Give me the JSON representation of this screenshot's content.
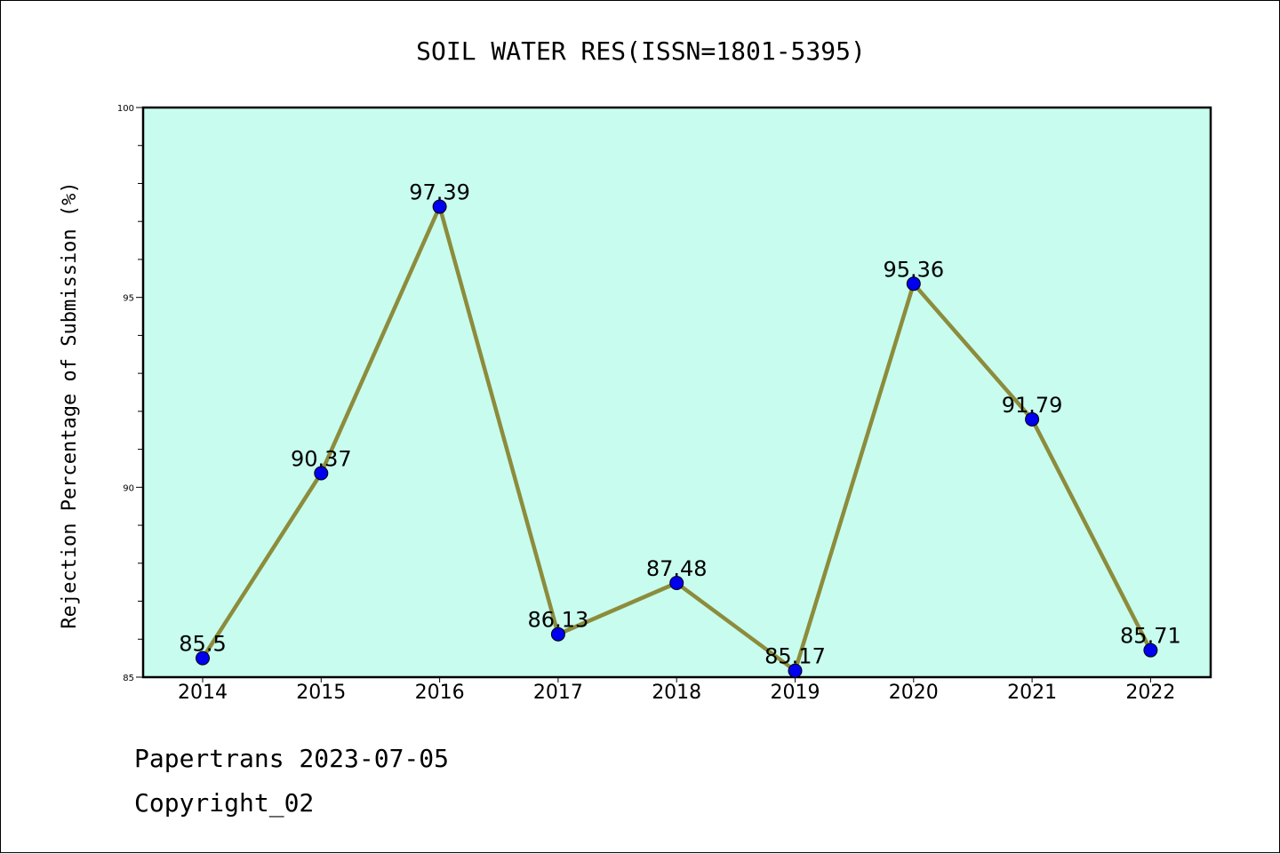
{
  "chart_data": {
    "type": "line",
    "title": "SOIL WATER RES(ISSN=1801-5395)",
    "xlabel": "",
    "ylabel": "Rejection Percentage of Submission (%)",
    "categories": [
      "2014",
      "2015",
      "2016",
      "2017",
      "2018",
      "2019",
      "2020",
      "2021",
      "2022"
    ],
    "series": [
      {
        "values": [
          85.5,
          90.37,
          97.39,
          86.13,
          87.48,
          85.17,
          95.36,
          91.79,
          85.71
        ]
      }
    ],
    "data_labels": [
      "85.5",
      "90.37",
      "97.39",
      "86.13",
      "87.48",
      "85.17",
      "95.36",
      "91.79",
      "85.71"
    ],
    "ylim": [
      85,
      100
    ],
    "y_ticks": [
      "85",
      "90",
      "95",
      "100"
    ],
    "y_minor_step": 1,
    "grid": false,
    "legend": "none",
    "colors": {
      "plot_background": "#c8fcee",
      "line": "#8c8c3c",
      "marker": "#0000ee",
      "axis": "#000000"
    }
  },
  "footer": {
    "date_line": "Papertrans 2023-07-05",
    "copyright_line": "Copyright_02"
  }
}
